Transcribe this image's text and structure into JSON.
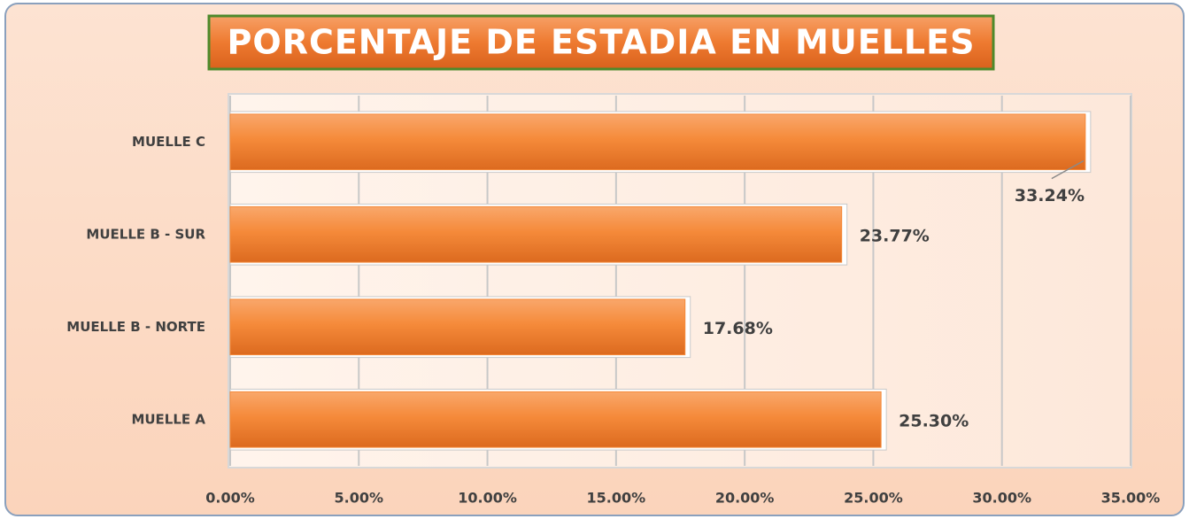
{
  "chart_data": {
    "type": "bar",
    "orientation": "horizontal",
    "title": "PORCENTAJE DE ESTADIA EN MUELLES",
    "categories": [
      "MUELLE C",
      "MUELLE B - SUR",
      "MUELLE B - NORTE",
      "MUELLE A"
    ],
    "values": [
      33.24,
      23.77,
      17.68,
      25.3
    ],
    "value_labels": [
      "33.24%",
      "23.77%",
      "17.68%",
      "25.30%"
    ],
    "color": "#f58a3a",
    "xlim": [
      0,
      35
    ],
    "xticks": [
      {
        "value": 0,
        "label": "0.00%"
      },
      {
        "value": 5,
        "label": "5.00%"
      },
      {
        "value": 10,
        "label": "10.00%"
      },
      {
        "value": 15,
        "label": "15.00%"
      },
      {
        "value": 20,
        "label": "20.00%"
      },
      {
        "value": 25,
        "label": "25.00%"
      },
      {
        "value": 30,
        "label": "30.00%"
      },
      {
        "value": 35,
        "label": "35.00%"
      }
    ],
    "grid": true
  }
}
